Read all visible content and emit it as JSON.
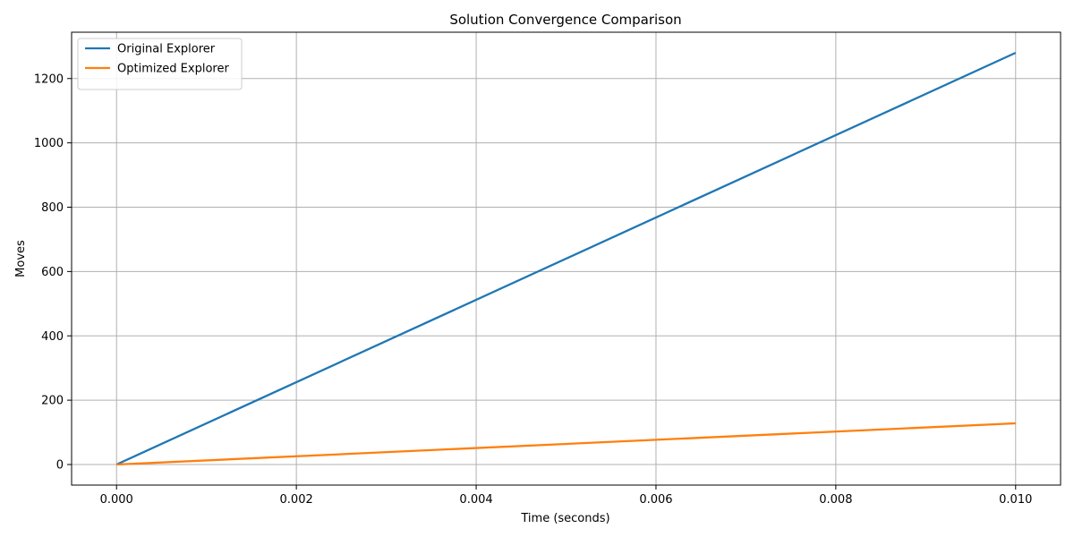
{
  "chart_data": {
    "type": "line",
    "title": "Solution Convergence Comparison",
    "xlabel": "Time (seconds)",
    "ylabel": "Moves",
    "xlim": [
      -0.0005,
      0.0105
    ],
    "ylim": [
      -64,
      1344
    ],
    "xticks": [
      0.0,
      0.002,
      0.004,
      0.006,
      0.008,
      0.01
    ],
    "xtick_labels": [
      "0.000",
      "0.002",
      "0.004",
      "0.006",
      "0.008",
      "0.010"
    ],
    "yticks": [
      0,
      200,
      400,
      600,
      800,
      1000,
      1200
    ],
    "ytick_labels": [
      "0",
      "200",
      "400",
      "600",
      "800",
      "1000",
      "1200"
    ],
    "grid": true,
    "legend_position": "top-left",
    "series": [
      {
        "name": "Original Explorer",
        "color": "#1f77b4",
        "x": [
          0.0,
          0.01
        ],
        "y": [
          0,
          1280
        ]
      },
      {
        "name": "Optimized Explorer",
        "color": "#ff7f0e",
        "x": [
          0.0,
          0.01
        ],
        "y": [
          0,
          128
        ]
      }
    ]
  }
}
